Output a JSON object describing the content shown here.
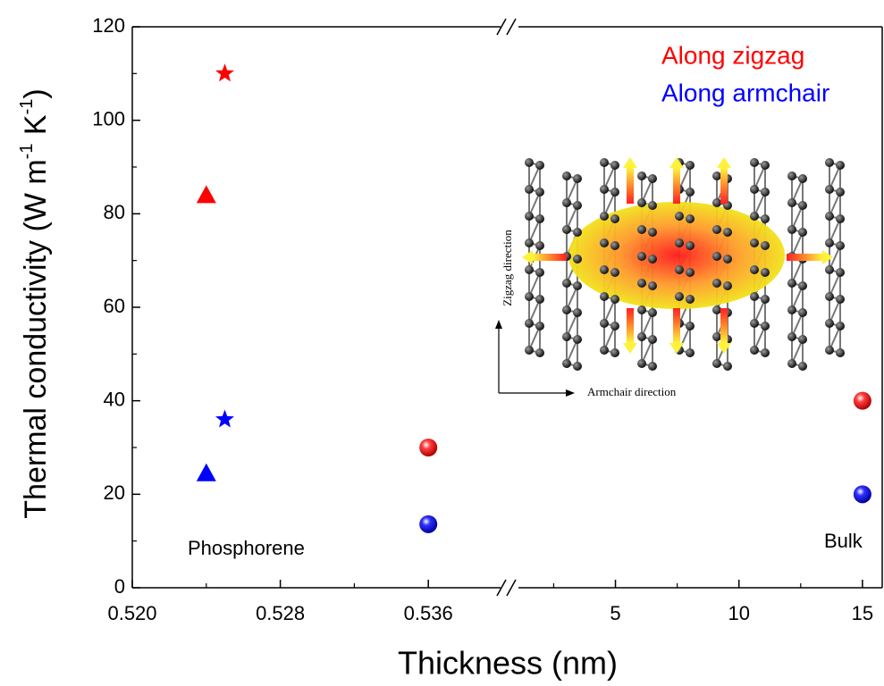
{
  "chart_data": {
    "type": "scatter",
    "ylabel": [
      {
        "text": "Thermal conductivity (W m"
      },
      {
        "text": "-1",
        "sup": true
      },
      {
        "text": " K"
      },
      {
        "text": "-1",
        "sup": true
      },
      {
        "text": ")"
      }
    ],
    "xlabel": "Thickness (nm)",
    "ylim": [
      0,
      120
    ],
    "yticks": [
      0,
      20,
      40,
      60,
      80,
      100,
      120
    ],
    "yminor": [
      10,
      30,
      50,
      70,
      90,
      110
    ],
    "x_segments": [
      {
        "xlim": [
          0.52,
          0.54
        ],
        "xticks": [
          {
            "value": 0.52,
            "label": "0.520"
          },
          0.528,
          0.536
        ],
        "xminor": [
          0.524,
          0.532
        ]
      },
      {
        "xlim": [
          1,
          15.8
        ],
        "xticks": [
          5,
          10,
          15
        ],
        "xminor": [
          2.5,
          7.5,
          12.5
        ]
      }
    ],
    "series": [
      {
        "name": "Along zigzag",
        "color": "#ff0000",
        "x": [
          0.524,
          0.525,
          0.536,
          15
        ],
        "values": [
          84,
          110,
          30,
          40
        ],
        "markers": [
          "triangle",
          "star",
          "sphere",
          "sphere"
        ]
      },
      {
        "name": "Along armchair",
        "color": "#0000ff",
        "x": [
          0.524,
          0.525,
          0.536,
          15
        ],
        "values": [
          24.5,
          36,
          13.6,
          20
        ],
        "markers": [
          "triangle",
          "star",
          "sphere",
          "sphere"
        ]
      }
    ],
    "legend": "upper right",
    "annotations": [
      "Phosphorene",
      "Bulk"
    ],
    "inset": {
      "ylabel": "Zigzag direction",
      "xlabel": "Armchair direction"
    }
  }
}
